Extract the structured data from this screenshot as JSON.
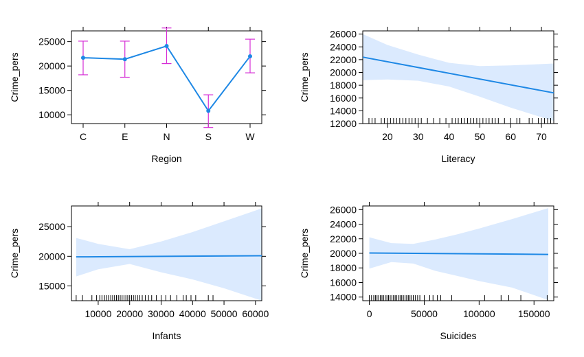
{
  "chart_data": [
    {
      "type": "line",
      "xlabel": "Region",
      "ylabel": "Crime_pers",
      "categories": [
        "C",
        "E",
        "N",
        "S",
        "W"
      ],
      "values": [
        21700,
        21400,
        24100,
        10800,
        22000
      ],
      "lower": [
        18200,
        17700,
        20500,
        7400,
        18600
      ],
      "upper": [
        25100,
        25100,
        27800,
        14100,
        25500
      ],
      "ylim": [
        8200,
        27200
      ],
      "yticks": [
        10000,
        15000,
        20000,
        25000
      ],
      "colors": {
        "line": "#1e88e5",
        "errorbar": "#d62dd6"
      }
    },
    {
      "type": "line",
      "xlabel": "Literacy",
      "ylabel": "Crime_pers",
      "xlim": [
        12,
        74
      ],
      "ylim": [
        12000,
        26500
      ],
      "xticks": [
        20,
        30,
        40,
        50,
        60,
        70
      ],
      "yticks": [
        12000,
        14000,
        16000,
        18000,
        20000,
        22000,
        24000,
        26000
      ],
      "line": {
        "x": [
          12,
          74
        ],
        "y": [
          22400,
          16800
        ]
      },
      "band": {
        "x": [
          12,
          20,
          30,
          40,
          50,
          60,
          74
        ],
        "lower": [
          18800,
          18900,
          18700,
          17800,
          16200,
          14500,
          12400
        ],
        "upper": [
          26000,
          24300,
          22800,
          21500,
          21000,
          21100,
          21400
        ]
      },
      "rug": [
        12,
        14,
        15,
        16,
        18,
        19,
        20,
        21,
        22,
        23,
        24,
        25,
        26,
        27,
        28,
        29,
        30,
        31,
        33,
        35,
        37,
        39,
        41,
        42,
        43,
        44,
        45,
        46,
        47,
        48,
        49,
        50,
        51,
        52,
        53,
        54,
        55,
        56,
        58,
        60,
        62,
        63,
        66,
        67,
        69,
        70,
        71,
        72,
        73,
        74
      ],
      "colors": {
        "line": "#1e88e5",
        "band": "#dbeafe"
      }
    },
    {
      "type": "line",
      "xlabel": "Infants",
      "ylabel": "Crime_pers",
      "xlim": [
        1500,
        62000
      ],
      "ylim": [
        12500,
        28500
      ],
      "xticks": [
        10000,
        20000,
        30000,
        40000,
        50000,
        60000
      ],
      "xtick_labels": [
        "10000",
        "20000",
        "30000",
        "40000",
        "50000",
        "60000"
      ],
      "yticks": [
        15000,
        20000,
        25000
      ],
      "line": {
        "x": [
          3000,
          62000
        ],
        "y": [
          19900,
          20100
        ]
      },
      "band": {
        "x": [
          3000,
          10000,
          20000,
          30000,
          40000,
          50000,
          62000
        ],
        "lower": [
          16600,
          17800,
          18700,
          17300,
          16100,
          14600,
          12500
        ],
        "upper": [
          23100,
          22100,
          21200,
          22500,
          24100,
          25900,
          28100
        ]
      },
      "rug": [
        3000,
        5000,
        8000,
        9500,
        10500,
        11200,
        12000,
        12700,
        13300,
        14000,
        14600,
        15200,
        15800,
        16400,
        17000,
        17600,
        18200,
        18800,
        19400,
        20000,
        20600,
        21200,
        21800,
        22500,
        23200,
        24000,
        25000,
        26000,
        27000,
        28500,
        30000,
        31500,
        33000,
        35000,
        37000,
        38000,
        39500,
        41000,
        45000,
        46500
      ],
      "colors": {
        "line": "#1e88e5",
        "band": "#dbeafe"
      }
    },
    {
      "type": "line",
      "xlabel": "Suicides",
      "ylabel": "Crime_pers",
      "xlim": [
        -6000,
        168000
      ],
      "ylim": [
        13500,
        26500
      ],
      "xticks": [
        0,
        50000,
        100000,
        150000
      ],
      "xtick_labels": [
        "0",
        "50000",
        "100000",
        "150000"
      ],
      "yticks": [
        14000,
        16000,
        18000,
        20000,
        22000,
        24000,
        26000
      ],
      "line": {
        "x": [
          0,
          163000
        ],
        "y": [
          20050,
          19850
        ]
      },
      "band": {
        "x": [
          0,
          20000,
          40000,
          60000,
          80000,
          100000,
          130000,
          163000
        ],
        "lower": [
          17900,
          18800,
          18600,
          17600,
          16900,
          16200,
          15300,
          13600
        ],
        "upper": [
          22200,
          21400,
          21300,
          21900,
          22600,
          23400,
          24700,
          26200
        ]
      },
      "rug": [
        0,
        2000,
        4000,
        5500,
        7000,
        8500,
        10000,
        11500,
        13000,
        14500,
        16000,
        17500,
        19000,
        20500,
        22000,
        23500,
        25000,
        26500,
        28000,
        29500,
        31000,
        32500,
        34000,
        35500,
        37000,
        38500,
        40000,
        42000,
        44000,
        46000,
        50000,
        55000,
        58000,
        62000,
        65000,
        75000,
        105000,
        120000,
        127000,
        138000,
        162000
      ],
      "colors": {
        "line": "#1e88e5",
        "band": "#dbeafe"
      }
    }
  ]
}
